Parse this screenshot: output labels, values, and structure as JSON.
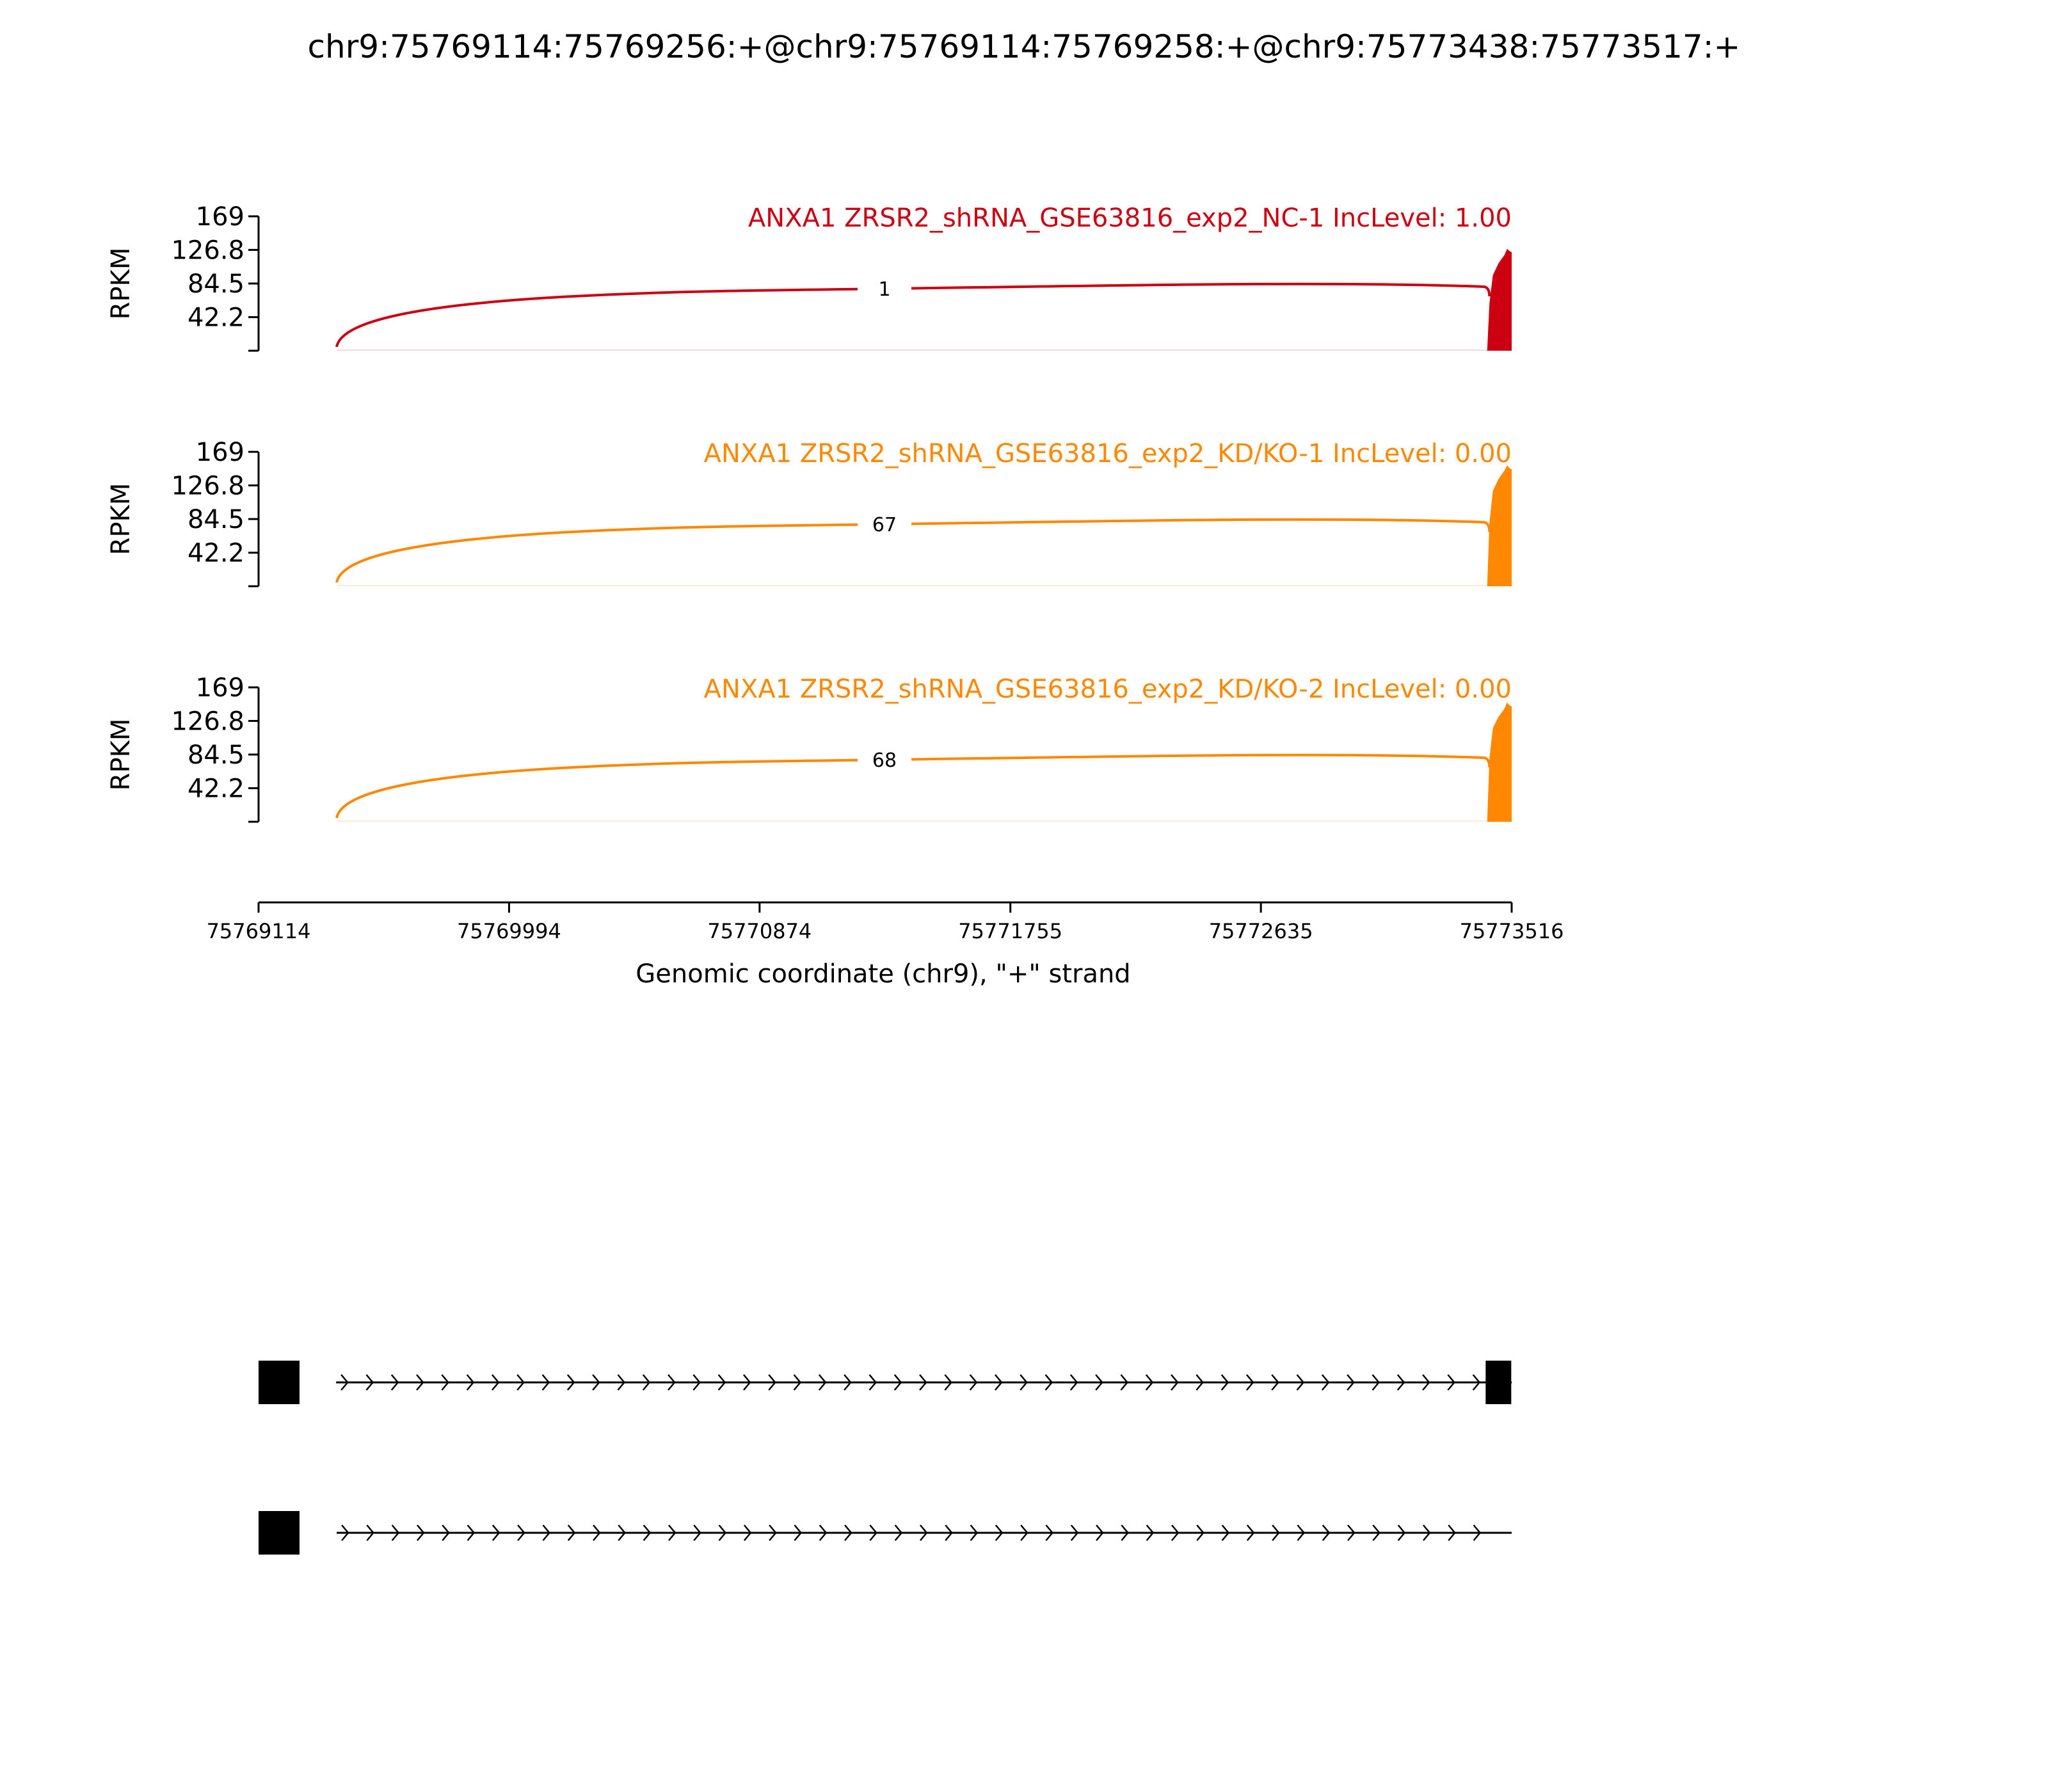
{
  "chart_data": {
    "type": "area",
    "title": "chr9:75769114:75769256:+@chr9:75769114:75769258:+@chr9:75773438:75773517:+",
    "xlabel": "Genomic coordinate (chr9), \"+\" strand",
    "ylabel": "RPKM",
    "xlim": [
      75769114,
      75773516
    ],
    "x_ticks": [
      "75769114",
      "75769994",
      "75770874",
      "75771755",
      "75772635",
      "75773516"
    ],
    "ylim": [
      0,
      169
    ],
    "y_ticks": [
      "169",
      "126.8",
      "84.5",
      "42.2"
    ],
    "grid": false,
    "tracks": [
      {
        "label": "ANXA1 ZRSR2_shRNA_GSE63816_exp2_NC-1 IncLevel: 1.00",
        "color": "#cc0011",
        "junctions": [
          {
            "start": 75769258,
            "end": 75773438,
            "count": "1"
          }
        ],
        "coverage": [
          {
            "x": 75769114,
            "y": 0
          },
          {
            "x": 75773430,
            "y": 0
          },
          {
            "x": 75773438,
            "y": 60
          },
          {
            "x": 75773450,
            "y": 95
          },
          {
            "x": 75773470,
            "y": 110
          },
          {
            "x": 75773490,
            "y": 120
          },
          {
            "x": 75773500,
            "y": 128
          },
          {
            "x": 75773510,
            "y": 125
          },
          {
            "x": 75773516,
            "y": 124
          }
        ]
      },
      {
        "label": "ANXA1 ZRSR2_shRNA_GSE63816_exp2_KD/KO-1 IncLevel: 0.00",
        "color": "#ff8800",
        "junctions": [
          {
            "start": 75769258,
            "end": 75773438,
            "count": "67"
          }
        ],
        "coverage": [
          {
            "x": 75769114,
            "y": 0
          },
          {
            "x": 75773430,
            "y": 0
          },
          {
            "x": 75773438,
            "y": 80
          },
          {
            "x": 75773450,
            "y": 120
          },
          {
            "x": 75773470,
            "y": 135
          },
          {
            "x": 75773490,
            "y": 145
          },
          {
            "x": 75773500,
            "y": 152
          },
          {
            "x": 75773510,
            "y": 148
          },
          {
            "x": 75773516,
            "y": 147
          }
        ]
      },
      {
        "label": "ANXA1 ZRSR2_shRNA_GSE63816_exp2_KD/KO-2 IncLevel: 0.00",
        "color": "#ff8800",
        "junctions": [
          {
            "start": 75769258,
            "end": 75773438,
            "count": "68"
          }
        ],
        "coverage": [
          {
            "x": 75769114,
            "y": 0
          },
          {
            "x": 75773430,
            "y": 0
          },
          {
            "x": 75773438,
            "y": 80
          },
          {
            "x": 75773450,
            "y": 118
          },
          {
            "x": 75773470,
            "y": 132
          },
          {
            "x": 75773490,
            "y": 142
          },
          {
            "x": 75773500,
            "y": 150
          },
          {
            "x": 75773510,
            "y": 146
          },
          {
            "x": 75773516,
            "y": 145
          }
        ]
      }
    ],
    "isoforms": [
      {
        "exons": [
          [
            75769114,
            75769256
          ],
          [
            75773438,
            75773517
          ]
        ]
      },
      {
        "exons": [
          [
            75769114,
            75769258
          ]
        ]
      }
    ]
  }
}
